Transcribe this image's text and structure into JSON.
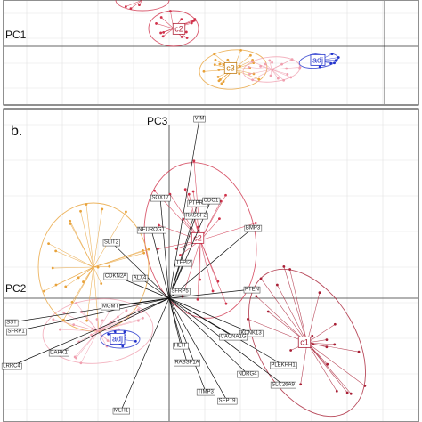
{
  "panel_label": "b.",
  "top": {
    "axis_label": "PC1",
    "clusters": [
      "c2",
      "c3",
      "adj"
    ]
  },
  "bottom": {
    "axis_labels": [
      "PC3",
      "PC2"
    ],
    "clusters": [
      "c2",
      "c1",
      "adj"
    ],
    "genes": [
      "VIM",
      "SOX17",
      "PTPRD",
      "RASSF2",
      "CDO1",
      "NEUROG1",
      "SLIT2",
      "BMP3",
      "TFPI2",
      "CDKN2A",
      "ALX4",
      "PTEN",
      "SFRP5",
      "MGMT",
      "KCNK13",
      "SST",
      "SFRP1",
      "DAPK1",
      "LRRC4",
      "CACNA1G",
      "PLEKHH1",
      "SLC26A9",
      "HLTF",
      "RASSF1A",
      "NDRG4",
      "TIMP3",
      "SEPT9",
      "MLH1"
    ]
  }
}
